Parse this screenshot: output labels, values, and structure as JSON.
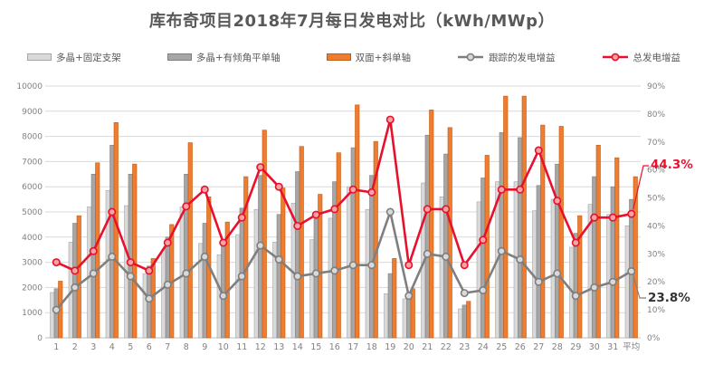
{
  "title": "库布奇项目2018年7月每日发电对比（kWh/MWp）",
  "annotations": [
    {
      "text": "44.3%",
      "color": "#E8112D"
    },
    {
      "text": "23.8%",
      "color": "#333333"
    }
  ],
  "chart_data": {
    "type": "combo bar+line, dual axis",
    "title": "库布奇项目2018年7月每日发电对比（kWh/MWp）",
    "categories": [
      "1",
      "2",
      "3",
      "4",
      "5",
      "6",
      "7",
      "8",
      "9",
      "10",
      "11",
      "12",
      "13",
      "14",
      "15",
      "16",
      "17",
      "18",
      "19",
      "20",
      "21",
      "22",
      "23",
      "24",
      "25",
      "26",
      "27",
      "28",
      "29",
      "30",
      "31",
      "平均"
    ],
    "left_axis": {
      "min": 0,
      "max": 10000,
      "ticks": [
        "0",
        "1000",
        "2000",
        "3000",
        "4000",
        "5000",
        "6000",
        "7000",
        "8000",
        "9000",
        "10000"
      ]
    },
    "right_axis": {
      "min": 0,
      "max": 90,
      "ticks": [
        "0%",
        "10%",
        "20%",
        "30%",
        "40%",
        "50%",
        "60%",
        "70%",
        "80%",
        "90%"
      ]
    },
    "grid": "horizontal, light gray",
    "legend_position": "top",
    "series": [
      {
        "name": "多晶+固定支架",
        "type": "bar",
        "axis": "left",
        "fill": "#D9D9D9",
        "stroke": "#A6A6A6",
        "values": [
          1800,
          3800,
          5200,
          5850,
          5250,
          2550,
          3500,
          5200,
          3750,
          3300,
          4100,
          5100,
          3800,
          5350,
          3900,
          4750,
          6000,
          5100,
          1750,
          1550,
          6150,
          5600,
          1150,
          5400,
          6200,
          6200,
          5050,
          5500,
          3600,
          5300,
          4900,
          4450
        ]
      },
      {
        "name": "多晶+有倾角平单轴",
        "type": "bar",
        "axis": "left",
        "fill": "#A6A6A6",
        "stroke": "#7F7F7F",
        "values": [
          1950,
          4550,
          6500,
          7650,
          6500,
          2850,
          4000,
          6500,
          4550,
          3700,
          5150,
          6450,
          4900,
          6600,
          4750,
          6200,
          7550,
          6450,
          2550,
          1750,
          8050,
          7300,
          1300,
          6350,
          8150,
          7950,
          6050,
          6900,
          4150,
          6400,
          6000,
          5500
        ]
      },
      {
        "name": "双面+斜单轴",
        "type": "bar",
        "axis": "left",
        "fill": "#ED7D31",
        "stroke": "#C55A11",
        "values": [
          2250,
          4850,
          6950,
          8550,
          6900,
          3150,
          4500,
          7750,
          5600,
          4600,
          6400,
          8250,
          5950,
          7600,
          5700,
          7350,
          9250,
          7800,
          3150,
          1950,
          9050,
          8350,
          1450,
          7250,
          9600,
          9600,
          8450,
          8400,
          4850,
          7650,
          7150,
          6400
        ]
      },
      {
        "name": "跟踪的发电增益",
        "type": "line",
        "axis": "right",
        "stroke": "#7F7F7F",
        "marker_fill": "#D9D9D9",
        "values": [
          10,
          18,
          23,
          29,
          22,
          14,
          19,
          23,
          29,
          15,
          22,
          33,
          28,
          22,
          23,
          24,
          26,
          26,
          45,
          15,
          30,
          29,
          16,
          17,
          31,
          28,
          20,
          23,
          15,
          18,
          20,
          23.8
        ]
      },
      {
        "name": "总发电增益",
        "type": "line",
        "axis": "right",
        "stroke": "#E8112D",
        "marker_fill": "#F5A3A3",
        "values": [
          27,
          24,
          31,
          45,
          27,
          24,
          34,
          47,
          53,
          34,
          43,
          61,
          54,
          40,
          44,
          46,
          53,
          52,
          78,
          26,
          46,
          46,
          26,
          35,
          53,
          53,
          67,
          49,
          34,
          43,
          43,
          44.3
        ]
      }
    ],
    "callouts": [
      {
        "text": "44.3%",
        "series": "总发电增益",
        "category": "平均"
      },
      {
        "text": "23.8%",
        "series": "跟踪的发电增益",
        "category": "平均"
      }
    ]
  }
}
